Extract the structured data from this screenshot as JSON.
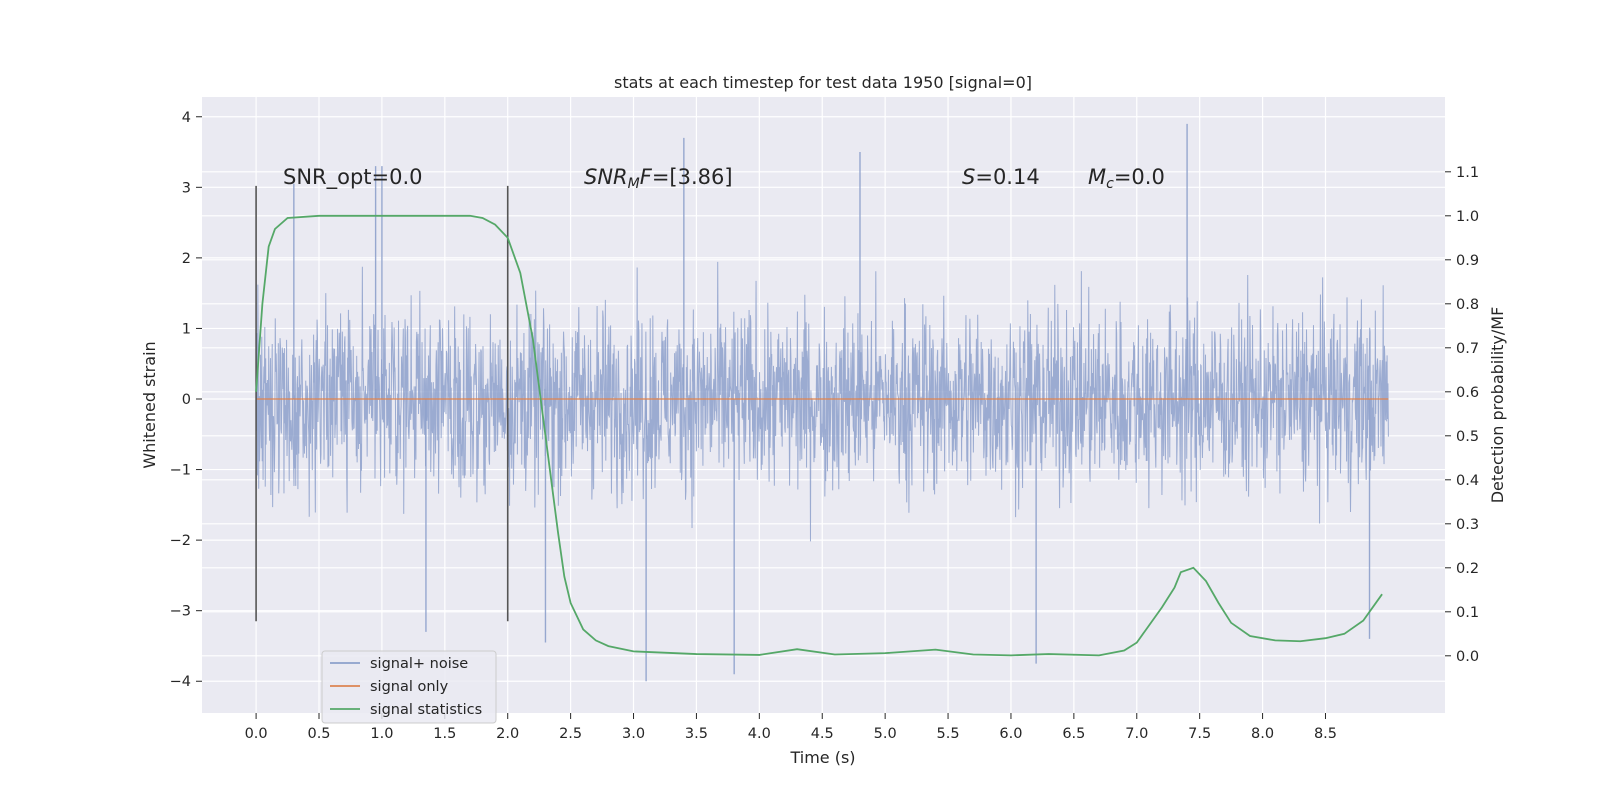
{
  "chart_data": {
    "type": "line",
    "title": "stats at each timestep for test data 1950 [signal=0]",
    "xlabel": "Time (s)",
    "ylabel": "Whitened strain",
    "ylabel_right": "Detection probability/MF",
    "xlim": [
      -0.43,
      9.45
    ],
    "ylim": [
      -4.45,
      4.28
    ],
    "ylim_right": [
      -0.13,
      1.27
    ],
    "x_ticks": [
      "0.0",
      "0.5",
      "1.0",
      "1.5",
      "2.0",
      "2.5",
      "3.0",
      "3.5",
      "4.0",
      "4.5",
      "5.0",
      "5.5",
      "6.0",
      "6.5",
      "7.0",
      "7.5",
      "8.0",
      "8.5"
    ],
    "y_ticks": [
      "4",
      "3",
      "2",
      "1",
      "0",
      "−1",
      "−2",
      "−3",
      "−4"
    ],
    "y_ticks_right": [
      "1.1",
      "1.0",
      "0.9",
      "0.8",
      "0.7",
      "0.6",
      "0.5",
      "0.4",
      "0.3",
      "0.2",
      "0.1",
      "0.0"
    ],
    "grid": true,
    "legend_position": "lower-left",
    "annotations": {
      "snr_opt": "SNR_opt=0.0",
      "snr_mf": "=[3.86]",
      "snr_mf_symbol": "SNR",
      "snr_mf_sub": "M",
      "snr_mf_suffix": "F",
      "s_symbol": "S",
      "s_value": "=0.14",
      "mc_symbol": "M",
      "mc_sub": "c",
      "mc_value": "=0.0"
    },
    "vertical_markers": [
      0.0,
      2.0
    ],
    "series": [
      {
        "name": "signal+ noise",
        "axis": "left",
        "color": "#8da0cb",
        "x_range": [
          0.0,
          9.0
        ],
        "description_stats": {
          "typical_abs_max": 2.2,
          "max": 3.9,
          "min": -4.0
        },
        "spikes": [
          {
            "x": 0.3,
            "y": 3.05
          },
          {
            "x": 0.95,
            "y": 3.3
          },
          {
            "x": 1.0,
            "y": 3.3
          },
          {
            "x": 3.1,
            "y": -4.0
          },
          {
            "x": 3.4,
            "y": 3.7
          },
          {
            "x": 3.8,
            "y": -3.9
          },
          {
            "x": 4.8,
            "y": 3.5
          },
          {
            "x": 6.2,
            "y": -3.75
          },
          {
            "x": 7.4,
            "y": 3.9
          },
          {
            "x": 2.3,
            "y": -3.45
          },
          {
            "x": 1.35,
            "y": -3.3
          },
          {
            "x": 8.85,
            "y": -3.4
          }
        ]
      },
      {
        "name": "signal only",
        "axis": "left",
        "color": "#dd8452",
        "x": [
          0.0,
          9.0
        ],
        "values": [
          0.0,
          0.0
        ]
      },
      {
        "name": "signal statistics",
        "axis": "right",
        "color": "#55a868",
        "x": [
          0.0,
          0.05,
          0.1,
          0.15,
          0.25,
          0.5,
          1.0,
          1.5,
          1.7,
          1.8,
          1.9,
          2.0,
          2.1,
          2.2,
          2.3,
          2.4,
          2.45,
          2.5,
          2.6,
          2.7,
          2.8,
          3.0,
          3.5,
          4.0,
          4.3,
          4.6,
          5.0,
          5.4,
          5.7,
          6.0,
          6.3,
          6.7,
          6.9,
          7.0,
          7.1,
          7.2,
          7.3,
          7.35,
          7.45,
          7.55,
          7.65,
          7.75,
          7.9,
          8.1,
          8.3,
          8.5,
          8.65,
          8.8,
          8.95
        ],
        "values": [
          0.6,
          0.8,
          0.93,
          0.97,
          0.995,
          1.0,
          1.0,
          1.0,
          1.0,
          0.995,
          0.98,
          0.95,
          0.87,
          0.72,
          0.5,
          0.28,
          0.18,
          0.12,
          0.06,
          0.035,
          0.022,
          0.01,
          0.004,
          0.002,
          0.015,
          0.003,
          0.006,
          0.014,
          0.003,
          0.001,
          0.004,
          0.001,
          0.012,
          0.03,
          0.07,
          0.11,
          0.155,
          0.19,
          0.2,
          0.17,
          0.12,
          0.075,
          0.045,
          0.035,
          0.033,
          0.04,
          0.05,
          0.08,
          0.14
        ]
      }
    ]
  }
}
